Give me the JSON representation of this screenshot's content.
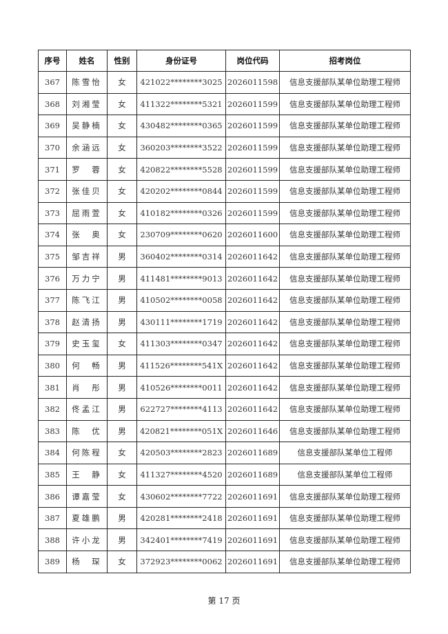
{
  "table": {
    "headers": [
      "序号",
      "姓名",
      "性别",
      "身份证号",
      "岗位代码",
      "招考岗位"
    ],
    "rows": [
      [
        "367",
        "陈雪怡",
        "女",
        "421022********3025",
        "2026011598",
        "信息支援部队某单位助理工程师"
      ],
      [
        "368",
        "刘湘莹",
        "女",
        "411322********5321",
        "2026011599",
        "信息支援部队某单位助理工程师"
      ],
      [
        "369",
        "吴静楠",
        "女",
        "430482********0365",
        "2026011599",
        "信息支援部队某单位助理工程师"
      ],
      [
        "370",
        "余涵远",
        "女",
        "360203********3522",
        "2026011599",
        "信息支援部队某单位助理工程师"
      ],
      [
        "371",
        "罗　蓉",
        "女",
        "420822********5528",
        "2026011599",
        "信息支援部队某单位助理工程师"
      ],
      [
        "372",
        "张佳贝",
        "女",
        "420202********0844",
        "2026011599",
        "信息支援部队某单位助理工程师"
      ],
      [
        "373",
        "屈雨萱",
        "女",
        "410182********0326",
        "2026011599",
        "信息支援部队某单位助理工程师"
      ],
      [
        "374",
        "张　奥",
        "女",
        "230709********0620",
        "2026011600",
        "信息支援部队某单位助理工程师"
      ],
      [
        "375",
        "邹吉祥",
        "男",
        "360402********0314",
        "2026011642",
        "信息支援部队某单位助理工程师"
      ],
      [
        "376",
        "万力宁",
        "男",
        "411481********9013",
        "2026011642",
        "信息支援部队某单位助理工程师"
      ],
      [
        "377",
        "陈飞江",
        "男",
        "410502********0058",
        "2026011642",
        "信息支援部队某单位助理工程师"
      ],
      [
        "378",
        "赵清扬",
        "男",
        "430111********1719",
        "2026011642",
        "信息支援部队某单位助理工程师"
      ],
      [
        "379",
        "史玉玺",
        "女",
        "411303********0347",
        "2026011642",
        "信息支援部队某单位助理工程师"
      ],
      [
        "380",
        "何　畅",
        "男",
        "411526********541X",
        "2026011642",
        "信息支援部队某单位助理工程师"
      ],
      [
        "381",
        "肖　彤",
        "男",
        "410526********0011",
        "2026011642",
        "信息支援部队某单位助理工程师"
      ],
      [
        "382",
        "佟孟江",
        "男",
        "622727********4113",
        "2026011642",
        "信息支援部队某单位助理工程师"
      ],
      [
        "383",
        "陈　优",
        "男",
        "420821********051X",
        "2026011646",
        "信息支援部队某单位助理工程师"
      ],
      [
        "384",
        "何陈程",
        "女",
        "420503********2823",
        "2026011689",
        "信息支援部队某单位工程师"
      ],
      [
        "385",
        "王　静",
        "女",
        "411327********4520",
        "2026011689",
        "信息支援部队某单位工程师"
      ],
      [
        "386",
        "谭嘉莹",
        "女",
        "430602********7722",
        "2026011691",
        "信息支援部队某单位助理工程师"
      ],
      [
        "387",
        "夏雄鹏",
        "男",
        "420281********2418",
        "2026011691",
        "信息支援部队某单位助理工程师"
      ],
      [
        "388",
        "许小龙",
        "男",
        "342401********7419",
        "2026011691",
        "信息支援部队某单位助理工程师"
      ],
      [
        "389",
        "杨　琛",
        "女",
        "372923********0062",
        "2026011691",
        "信息支援部队某单位助理工程师"
      ]
    ]
  },
  "footer": {
    "page_label": "第 17 页"
  }
}
